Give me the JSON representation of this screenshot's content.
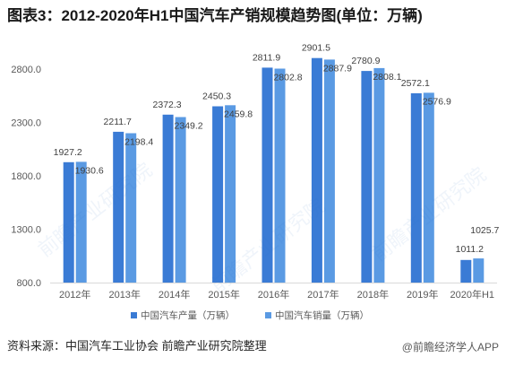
{
  "chart_data": {
    "type": "bar",
    "title": "图表3：2012-2020年H1中国汽车产销规模趋势图(单位：万辆)",
    "xlabel": "",
    "ylabel": "",
    "categories": [
      "2012年",
      "2013年",
      "2014年",
      "2015年",
      "2016年",
      "2017年",
      "2018年",
      "2019年",
      "2020年H1"
    ],
    "series": [
      {
        "name": "中国汽车产量（万辆）",
        "color": "#3a7bd5",
        "values": [
          1927.2,
          2211.7,
          2372.3,
          2450.3,
          2811.9,
          2901.5,
          2780.9,
          2572.1,
          1011.2
        ]
      },
      {
        "name": "中国汽车销量（万辆）",
        "color": "#5a9ae3",
        "values": [
          1930.6,
          2198.4,
          2349.2,
          2459.8,
          2802.8,
          2887.9,
          2808.1,
          2576.9,
          1025.7
        ]
      }
    ],
    "y_tick_labels": [
      "800.0",
      "1300.0",
      "1800.0",
      "2300.0",
      "2800.0"
    ],
    "ylim": [
      800,
      3000
    ],
    "data_labels": true,
    "grid": false,
    "legend": "bottom-center"
  },
  "source": "资料来源：中国汽车工业协会 前瞻产业研究院整理",
  "brand": "@前瞻经济学人APP",
  "watermark": "前瞻产业研究院"
}
